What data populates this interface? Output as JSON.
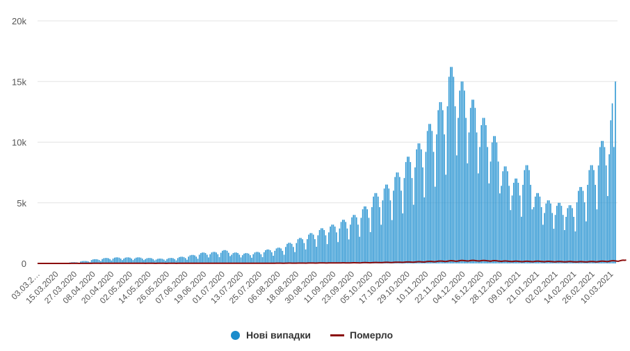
{
  "chart_data": {
    "type": "bar",
    "title": "",
    "xlabel": "",
    "ylabel": "",
    "ylim": [
      0,
      20000
    ],
    "yticks": [
      "0",
      "5k",
      "10k",
      "15k",
      "20k"
    ],
    "ytick_values": [
      0,
      5000,
      10000,
      15000,
      20000
    ],
    "grid": true,
    "legend_position": "bottom",
    "x_start": "03.03.2020",
    "x_end": "13.03.2021",
    "xtick_labels": [
      "03.03.2…",
      "15.03.2020",
      "27.03.2020",
      "08.04.2020",
      "20.04.2020",
      "02.05.2020",
      "14.05.2020",
      "26.05.2020",
      "07.06.2020",
      "19.06.2020",
      "01.07.2020",
      "13.07.2020",
      "25.07.2020",
      "06.08.2020",
      "18.08.2020",
      "30.08.2020",
      "11.09.2020",
      "23.09.2020",
      "05.10.2020",
      "17.10.2020",
      "29.10.2020",
      "10.11.2020",
      "22.11.2020",
      "04.12.2020",
      "16.12.2020",
      "28.12.2020",
      "09.01.2021",
      "21.01.2021",
      "02.02.2021",
      "14.02.2021",
      "26.02.2021",
      "10.03.2021"
    ],
    "series": [
      {
        "name": "Нові випадки",
        "type": "bar",
        "color": "#2f97d3",
        "values": [
          0,
          0,
          0,
          0,
          0,
          0,
          1,
          1,
          2,
          3,
          5,
          4,
          3,
          2,
          16,
          19,
          20,
          20,
          19,
          16,
          11,
          80,
          95,
          100,
          100,
          95,
          80,
          55,
          160,
          190,
          200,
          200,
          190,
          160,
          110,
          280,
          333,
          350,
          350,
          333,
          280,
          193,
          360,
          428,
          450,
          450,
          428,
          360,
          248,
          400,
          475,
          500,
          500,
          475,
          400,
          275,
          400,
          475,
          500,
          500,
          475,
          400,
          275,
          400,
          475,
          500,
          500,
          475,
          400,
          275,
          360,
          428,
          450,
          450,
          428,
          360,
          248,
          320,
          380,
          400,
          400,
          380,
          320,
          220,
          360,
          428,
          450,
          450,
          428,
          360,
          248,
          440,
          523,
          550,
          550,
          523,
          440,
          303,
          560,
          665,
          700,
          700,
          665,
          560,
          385,
          720,
          855,
          900,
          900,
          855,
          720,
          495,
          760,
          903,
          950,
          950,
          903,
          760,
          523,
          880,
          1045,
          1100,
          1100,
          1045,
          880,
          605,
          720,
          855,
          900,
          900,
          855,
          720,
          495,
          680,
          808,
          850,
          850,
          808,
          680,
          468,
          760,
          903,
          950,
          950,
          903,
          760,
          523,
          920,
          1093,
          1150,
          1150,
          1093,
          920,
          633,
          1040,
          1235,
          1300,
          1300,
          1235,
          1040,
          715,
          1360,
          1615,
          1700,
          1700,
          1615,
          1360,
          935,
          1680,
          1995,
          2100,
          2100,
          1995,
          1680,
          1155,
          2000,
          2375,
          2500,
          2500,
          2375,
          2000,
          1375,
          2320,
          2755,
          2900,
          2900,
          2755,
          2320,
          1595,
          2560,
          3040,
          3200,
          3200,
          3040,
          2560,
          1760,
          2880,
          3420,
          3600,
          3600,
          3420,
          2880,
          1980,
          3200,
          3800,
          4000,
          4000,
          3800,
          3200,
          2200,
          3760,
          4465,
          4700,
          4700,
          4465,
          3760,
          2585,
          4640,
          5510,
          5800,
          5800,
          5510,
          4640,
          3190,
          5200,
          6175,
          6500,
          6500,
          6175,
          5200,
          3575,
          6000,
          7125,
          7500,
          7500,
          7125,
          6000,
          4125,
          7040,
          8360,
          8800,
          8800,
          8360,
          7040,
          4840,
          7920,
          9405,
          9900,
          9900,
          9405,
          7920,
          5445,
          9200,
          10925,
          11500,
          11500,
          10925,
          9200,
          6325,
          10640,
          12635,
          13300,
          13300,
          12635,
          10640,
          7315,
          12960,
          15390,
          16200,
          16200,
          15390,
          12960,
          8910,
          12000,
          14250,
          15000,
          15000,
          14250,
          12000,
          8250,
          10800,
          12825,
          13500,
          13500,
          12825,
          10800,
          7425,
          9600,
          11400,
          12000,
          12000,
          11400,
          9600,
          6600,
          8400,
          9975,
          10500,
          10500,
          9975,
          8400,
          5775,
          6400,
          7600,
          8000,
          8000,
          7600,
          6400,
          4400,
          5600,
          6650,
          7000,
          7000,
          6650,
          5600,
          3850,
          6480,
          7695,
          8100,
          8100,
          7695,
          6480,
          4455,
          4640,
          5510,
          5800,
          5800,
          5510,
          4640,
          3190,
          4160,
          4940,
          5200,
          5200,
          4940,
          4160,
          2860,
          4000,
          4750,
          5000,
          5000,
          4750,
          4000,
          2750,
          3840,
          4560,
          4800,
          4800,
          4560,
          3840,
          2640,
          5040,
          5985,
          6300,
          6300,
          5985,
          5040,
          3465,
          6480,
          7695,
          8100,
          8100,
          7695,
          6480,
          4455,
          8080,
          9595,
          10100,
          10100,
          9595,
          8080,
          5555,
          9000,
          11800,
          13200,
          9600,
          15000
        ]
      },
      {
        "name": "Померло",
        "type": "line",
        "color": "#8b0a0a",
        "values": [
          0,
          0,
          0,
          0,
          0,
          0,
          0,
          0,
          0,
          0,
          0,
          0,
          0,
          0,
          0,
          0,
          1,
          1,
          1,
          1,
          1,
          2,
          3,
          3,
          3,
          3,
          3,
          2,
          4,
          5,
          6,
          6,
          5,
          5,
          4,
          8,
          10,
          11,
          11,
          10,
          9,
          8,
          10,
          12,
          13,
          13,
          12,
          11,
          10,
          10,
          12,
          13,
          13,
          12,
          11,
          10,
          9,
          11,
          12,
          12,
          11,
          10,
          9,
          9,
          11,
          12,
          12,
          11,
          10,
          9,
          8,
          10,
          11,
          11,
          10,
          9,
          8,
          8,
          10,
          11,
          11,
          10,
          9,
          8,
          8,
          10,
          11,
          11,
          10,
          9,
          8,
          9,
          11,
          12,
          12,
          11,
          10,
          9,
          10,
          12,
          14,
          14,
          12,
          11,
          10,
          12,
          14,
          16,
          16,
          14,
          13,
          12,
          13,
          15,
          17,
          17,
          15,
          14,
          13,
          14,
          16,
          18,
          18,
          16,
          15,
          14,
          13,
          15,
          17,
          17,
          15,
          14,
          13,
          13,
          15,
          17,
          17,
          15,
          14,
          13,
          14,
          16,
          18,
          18,
          16,
          15,
          14,
          16,
          18,
          20,
          20,
          18,
          17,
          16,
          18,
          21,
          23,
          23,
          21,
          19,
          18,
          21,
          24,
          27,
          27,
          24,
          22,
          21,
          25,
          28,
          31,
          31,
          28,
          26,
          25,
          29,
          33,
          36,
          36,
          33,
          30,
          29,
          34,
          38,
          42,
          42,
          38,
          35,
          34,
          38,
          43,
          47,
          47,
          43,
          40,
          38,
          42,
          48,
          52,
          52,
          48,
          44,
          42,
          47,
          54,
          58,
          58,
          54,
          50,
          47,
          54,
          62,
          67,
          67,
          62,
          57,
          54,
          63,
          72,
          78,
          78,
          72,
          66,
          63,
          73,
          84,
          90,
          90,
          84,
          77,
          73,
          85,
          97,
          105,
          105,
          97,
          90,
          85,
          100,
          114,
          123,
          123,
          114,
          105,
          100,
          115,
          131,
          142,
          142,
          131,
          121,
          115,
          135,
          154,
          166,
          166,
          154,
          142,
          135,
          160,
          182,
          196,
          196,
          182,
          168,
          160,
          180,
          205,
          221,
          221,
          205,
          189,
          180,
          200,
          228,
          246,
          246,
          228,
          210,
          200,
          205,
          234,
          252,
          252,
          234,
          216,
          205,
          200,
          228,
          246,
          246,
          228,
          210,
          200,
          185,
          211,
          228,
          228,
          211,
          195,
          185,
          165,
          188,
          203,
          203,
          188,
          174,
          165,
          150,
          171,
          185,
          185,
          171,
          158,
          150,
          145,
          165,
          178,
          178,
          165,
          152,
          145,
          150,
          171,
          185,
          185,
          171,
          158,
          150,
          140,
          160,
          172,
          172,
          160,
          147,
          140,
          130,
          148,
          160,
          160,
          148,
          137,
          130,
          125,
          143,
          154,
          154,
          143,
          132,
          125,
          120,
          137,
          148,
          148,
          137,
          126,
          120,
          130,
          148,
          160,
          160,
          148,
          137,
          130,
          150,
          171,
          185,
          185,
          171,
          158,
          150,
          180,
          205,
          221,
          221,
          205,
          189,
          180,
          220,
          250,
          270,
          260,
          280
        ]
      }
    ]
  },
  "legend": {
    "cases_label": "Нові випадки",
    "deaths_label": "Померло",
    "cases_color": "#1a8ccc",
    "deaths_color": "#8b0a0a"
  }
}
